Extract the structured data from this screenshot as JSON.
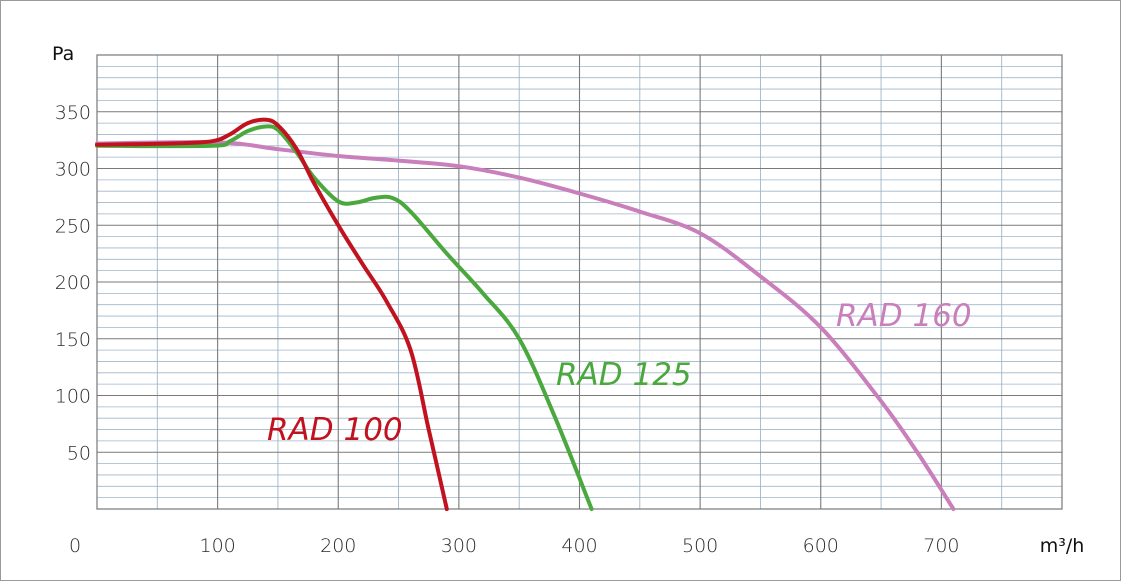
{
  "chart_data": {
    "type": "line",
    "title": "",
    "xlabel": "m³/h",
    "ylabel": "Pa",
    "xlim": [
      0,
      800
    ],
    "ylim": [
      0,
      400
    ],
    "x_ticks": [
      0,
      100,
      200,
      300,
      400,
      500,
      600,
      700
    ],
    "x_tick_labels": [
      "0",
      "100",
      "200",
      "300",
      "400",
      "500",
      "600",
      "700"
    ],
    "y_ticks": [
      50,
      100,
      150,
      200,
      250,
      300,
      350
    ],
    "y_tick_labels": [
      "50",
      "100",
      "150",
      "200",
      "250",
      "300",
      "350"
    ],
    "grid": true,
    "series": [
      {
        "name": "RAD 100",
        "color": "#c1121f",
        "x": [
          0,
          60,
          95,
          110,
          125,
          140,
          150,
          165,
          180,
          200,
          220,
          240,
          260,
          275,
          290
        ],
        "y": [
          321,
          322,
          324,
          330,
          340,
          343,
          338,
          318,
          287,
          250,
          216,
          183,
          140,
          70,
          0
        ]
      },
      {
        "name": "RAD 125",
        "color": "#4aa83e",
        "x": [
          0,
          95,
          110,
          125,
          140,
          150,
          165,
          180,
          200,
          215,
          230,
          245,
          260,
          290,
          320,
          350,
          380,
          410
        ],
        "y": [
          320,
          320,
          324,
          333,
          337,
          334,
          315,
          292,
          271,
          270,
          274,
          274,
          262,
          225,
          190,
          150,
          80,
          0
        ]
      },
      {
        "name": "RAD 160",
        "color": "#c87fbc",
        "x": [
          0,
          100,
          150,
          200,
          250,
          300,
          350,
          400,
          450,
          500,
          550,
          600,
          650,
          680,
          710
        ],
        "y": [
          322,
          323,
          317,
          311,
          307,
          302,
          292,
          278,
          262,
          243,
          205,
          160,
          95,
          50,
          0
        ]
      }
    ]
  }
}
